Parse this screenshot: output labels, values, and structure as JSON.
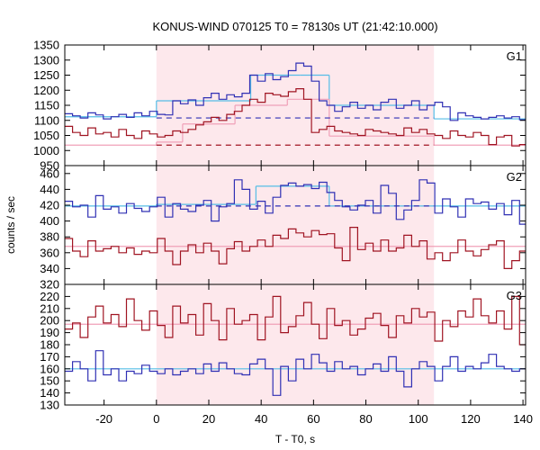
{
  "chart_data": {
    "type": "line",
    "title": "KONUS-WIND 070125 T0 = 78130s UT (21:42:10.000)",
    "xlabel": "T - T0, s",
    "ylabel": "counts / sec",
    "xlim": [
      -35,
      141
    ],
    "xticks": [
      -20,
      0,
      20,
      40,
      60,
      80,
      100,
      120,
      140
    ],
    "shaded_interval": [
      0,
      106
    ],
    "colors": {
      "shade": "#fde8ec",
      "blue": "#3030b4",
      "red": "#a01422",
      "lightblue": "#55bde6",
      "pink": "#f0a0b8"
    },
    "panels": [
      {
        "name": "G1",
        "ylim": [
          950,
          1350
        ],
        "yticks": [
          950,
          1000,
          1050,
          1100,
          1150,
          1200,
          1250,
          1300,
          1350
        ],
        "series": [
          {
            "color": "blue",
            "x_start": -35,
            "step": 2.944,
            "values": [
              1122,
              1115,
              1108,
              1125,
              1118,
              1105,
              1112,
              1120,
              1110,
              1125,
              1115,
              1130,
              1120,
              1118,
              1165,
              1155,
              1168,
              1150,
              1175,
              1190,
              1170,
              1185,
              1178,
              1190,
              1250,
              1230,
              1255,
              1235,
              1245,
              1265,
              1290,
              1280,
              1230,
              1165,
              1150,
              1130,
              1145,
              1160,
              1140,
              1150,
              1135,
              1160,
              1170,
              1140,
              1150,
              1165,
              1135,
              1150,
              1160,
              1145,
              1100,
              1125,
              1115,
              1110,
              1105,
              1110,
              1115,
              1108,
              1112,
              1102
            ]
          },
          {
            "color": "red",
            "x_start": -35,
            "step": 2.944,
            "values": [
              1080,
              1060,
              1050,
              1075,
              1055,
              1060,
              1045,
              1070,
              1050,
              1040,
              1065,
              1055,
              1045,
              1050,
              1065,
              1060,
              1070,
              1085,
              1095,
              1110,
              1100,
              1120,
              1130,
              1150,
              1170,
              1160,
              1190,
              1185,
              1180,
              1195,
              1205,
              1170,
              1060,
              1070,
              1080,
              1065,
              1060,
              1055,
              1050,
              1070,
              1065,
              1060,
              1055,
              1050,
              1075,
              1060,
              1070,
              1055,
              1050,
              1040,
              1065,
              1050,
              1045,
              1060,
              1050,
              1020,
              1045,
              1050,
              1015,
              1020
            ]
          }
        ],
        "fits": [
          {
            "color": "lightblue",
            "segments": [
              [
                -35,
                0,
                1112
              ],
              [
                0,
                36,
                1165
              ],
              [
                36,
                55,
                1250
              ],
              [
                55,
                66,
                1250
              ],
              [
                66,
                106,
                1150
              ],
              [
                106,
                141,
                1105
              ]
            ]
          },
          {
            "color": "pink",
            "segments": [
              [
                -35,
                0,
                1018
              ],
              [
                0,
                10,
                1028
              ],
              [
                10,
                30,
                1088
              ],
              [
                30,
                50,
                1150
              ],
              [
                50,
                66,
                1170
              ],
              [
                66,
                106,
                1048
              ],
              [
                106,
                141,
                1018
              ]
            ]
          }
        ],
        "dashed": [
          {
            "color": "blue",
            "y": 1108,
            "x_range": [
              0,
              106
            ]
          },
          {
            "color": "red",
            "y": 1018,
            "x_range": [
              0,
              106
            ]
          }
        ]
      },
      {
        "name": "G2",
        "ylim": [
          320,
          470
        ],
        "yticks": [
          320,
          340,
          360,
          380,
          400,
          420,
          440,
          460
        ],
        "series": [
          {
            "color": "blue",
            "x_start": -35,
            "step": 2.944,
            "values": [
              425,
              418,
              420,
              405,
              432,
              415,
              418,
              410,
              422,
              416,
              412,
              418,
              430,
              405,
              422,
              415,
              412,
              420,
              426,
              400,
              418,
              422,
              452,
              440,
              415,
              425,
              410,
              430,
              445,
              448,
              444,
              446,
              441,
              449,
              436,
              426,
              418,
              414,
              420,
              426,
              410,
              445,
              435,
              402,
              414,
              426,
              452,
              448,
              410,
              428,
              418,
              405,
              428,
              422,
              424,
              415,
              422,
              408,
              426,
              396
            ]
          },
          {
            "color": "red",
            "x_start": -35,
            "step": 2.944,
            "values": [
              378,
              362,
              355,
              375,
              362,
              365,
              368,
              360,
              366,
              358,
              362,
              360,
              378,
              362,
              345,
              362,
              370,
              360,
              372,
              362,
              346,
              365,
              374,
              362,
              368,
              376,
              368,
              382,
              378,
              390,
              385,
              380,
              388,
              383,
              384,
              366,
              350,
              392,
              364,
              372,
              362,
              376,
              362,
              366,
              382,
              368,
              375,
              352,
              360,
              350,
              360,
              376,
              362,
              356,
              364,
              370,
              375,
              340,
              350,
              362
            ]
          }
        ],
        "fits": [
          {
            "color": "lightblue",
            "segments": [
              [
                -35,
                0,
                419
              ],
              [
                0,
                38,
                421
              ],
              [
                38,
                66,
                444
              ],
              [
                66,
                106,
                419
              ],
              [
                106,
                141,
                419
              ]
            ]
          },
          {
            "color": "pink",
            "segments": [
              [
                -35,
                141,
                368
              ]
            ]
          }
        ],
        "dashed": [
          {
            "color": "blue",
            "y": 419,
            "x_range": [
              0,
              106
            ]
          }
        ]
      },
      {
        "name": "G3",
        "ylim": [
          130,
          230
        ],
        "yticks": [
          130,
          140,
          150,
          160,
          170,
          180,
          190,
          200,
          210,
          220
        ],
        "series": [
          {
            "color": "blue",
            "x_start": -35,
            "step": 2.944,
            "values": [
              158,
              166,
              160,
              150,
              175,
              155,
              160,
              150,
              158,
              156,
              163,
              158,
              156,
              160,
              155,
              158,
              160,
              156,
              164,
              158,
              165,
              160,
              156,
              155,
              164,
              168,
              160,
              138,
              162,
              150,
              168,
              160,
              172,
              165,
              158,
              166,
              160,
              162,
              155,
              160,
              164,
              158,
              170,
              158,
              145,
              160,
              166,
              162,
              150,
              162,
              170,
              158,
              162,
              160,
              165,
              172,
              162,
              160,
              158,
              160
            ]
          },
          {
            "color": "red",
            "x_start": -35,
            "step": 2.944,
            "values": [
              193,
              198,
              186,
              203,
              212,
              198,
              205,
              195,
              218,
              200,
              192,
              208,
              196,
              186,
              212,
              198,
              205,
              188,
              214,
              200,
              184,
              210,
              197,
              200,
              205,
              184,
              203,
              220,
              190,
              195,
              204,
              215,
              197,
              185,
              210,
              196,
              200,
              188,
              193,
              202,
              206,
              196,
              186,
              204,
              198,
              210,
              203,
              207,
              183,
              200,
              195,
              208,
              203,
              218,
              204,
              198,
              208,
              193,
              220,
              180
            ]
          }
        ],
        "fits": [
          {
            "color": "lightblue",
            "segments": [
              [
                -35,
                141,
                160
              ]
            ]
          },
          {
            "color": "pink",
            "segments": [
              [
                -35,
                141,
                197
              ]
            ]
          }
        ],
        "dashed": []
      }
    ]
  }
}
